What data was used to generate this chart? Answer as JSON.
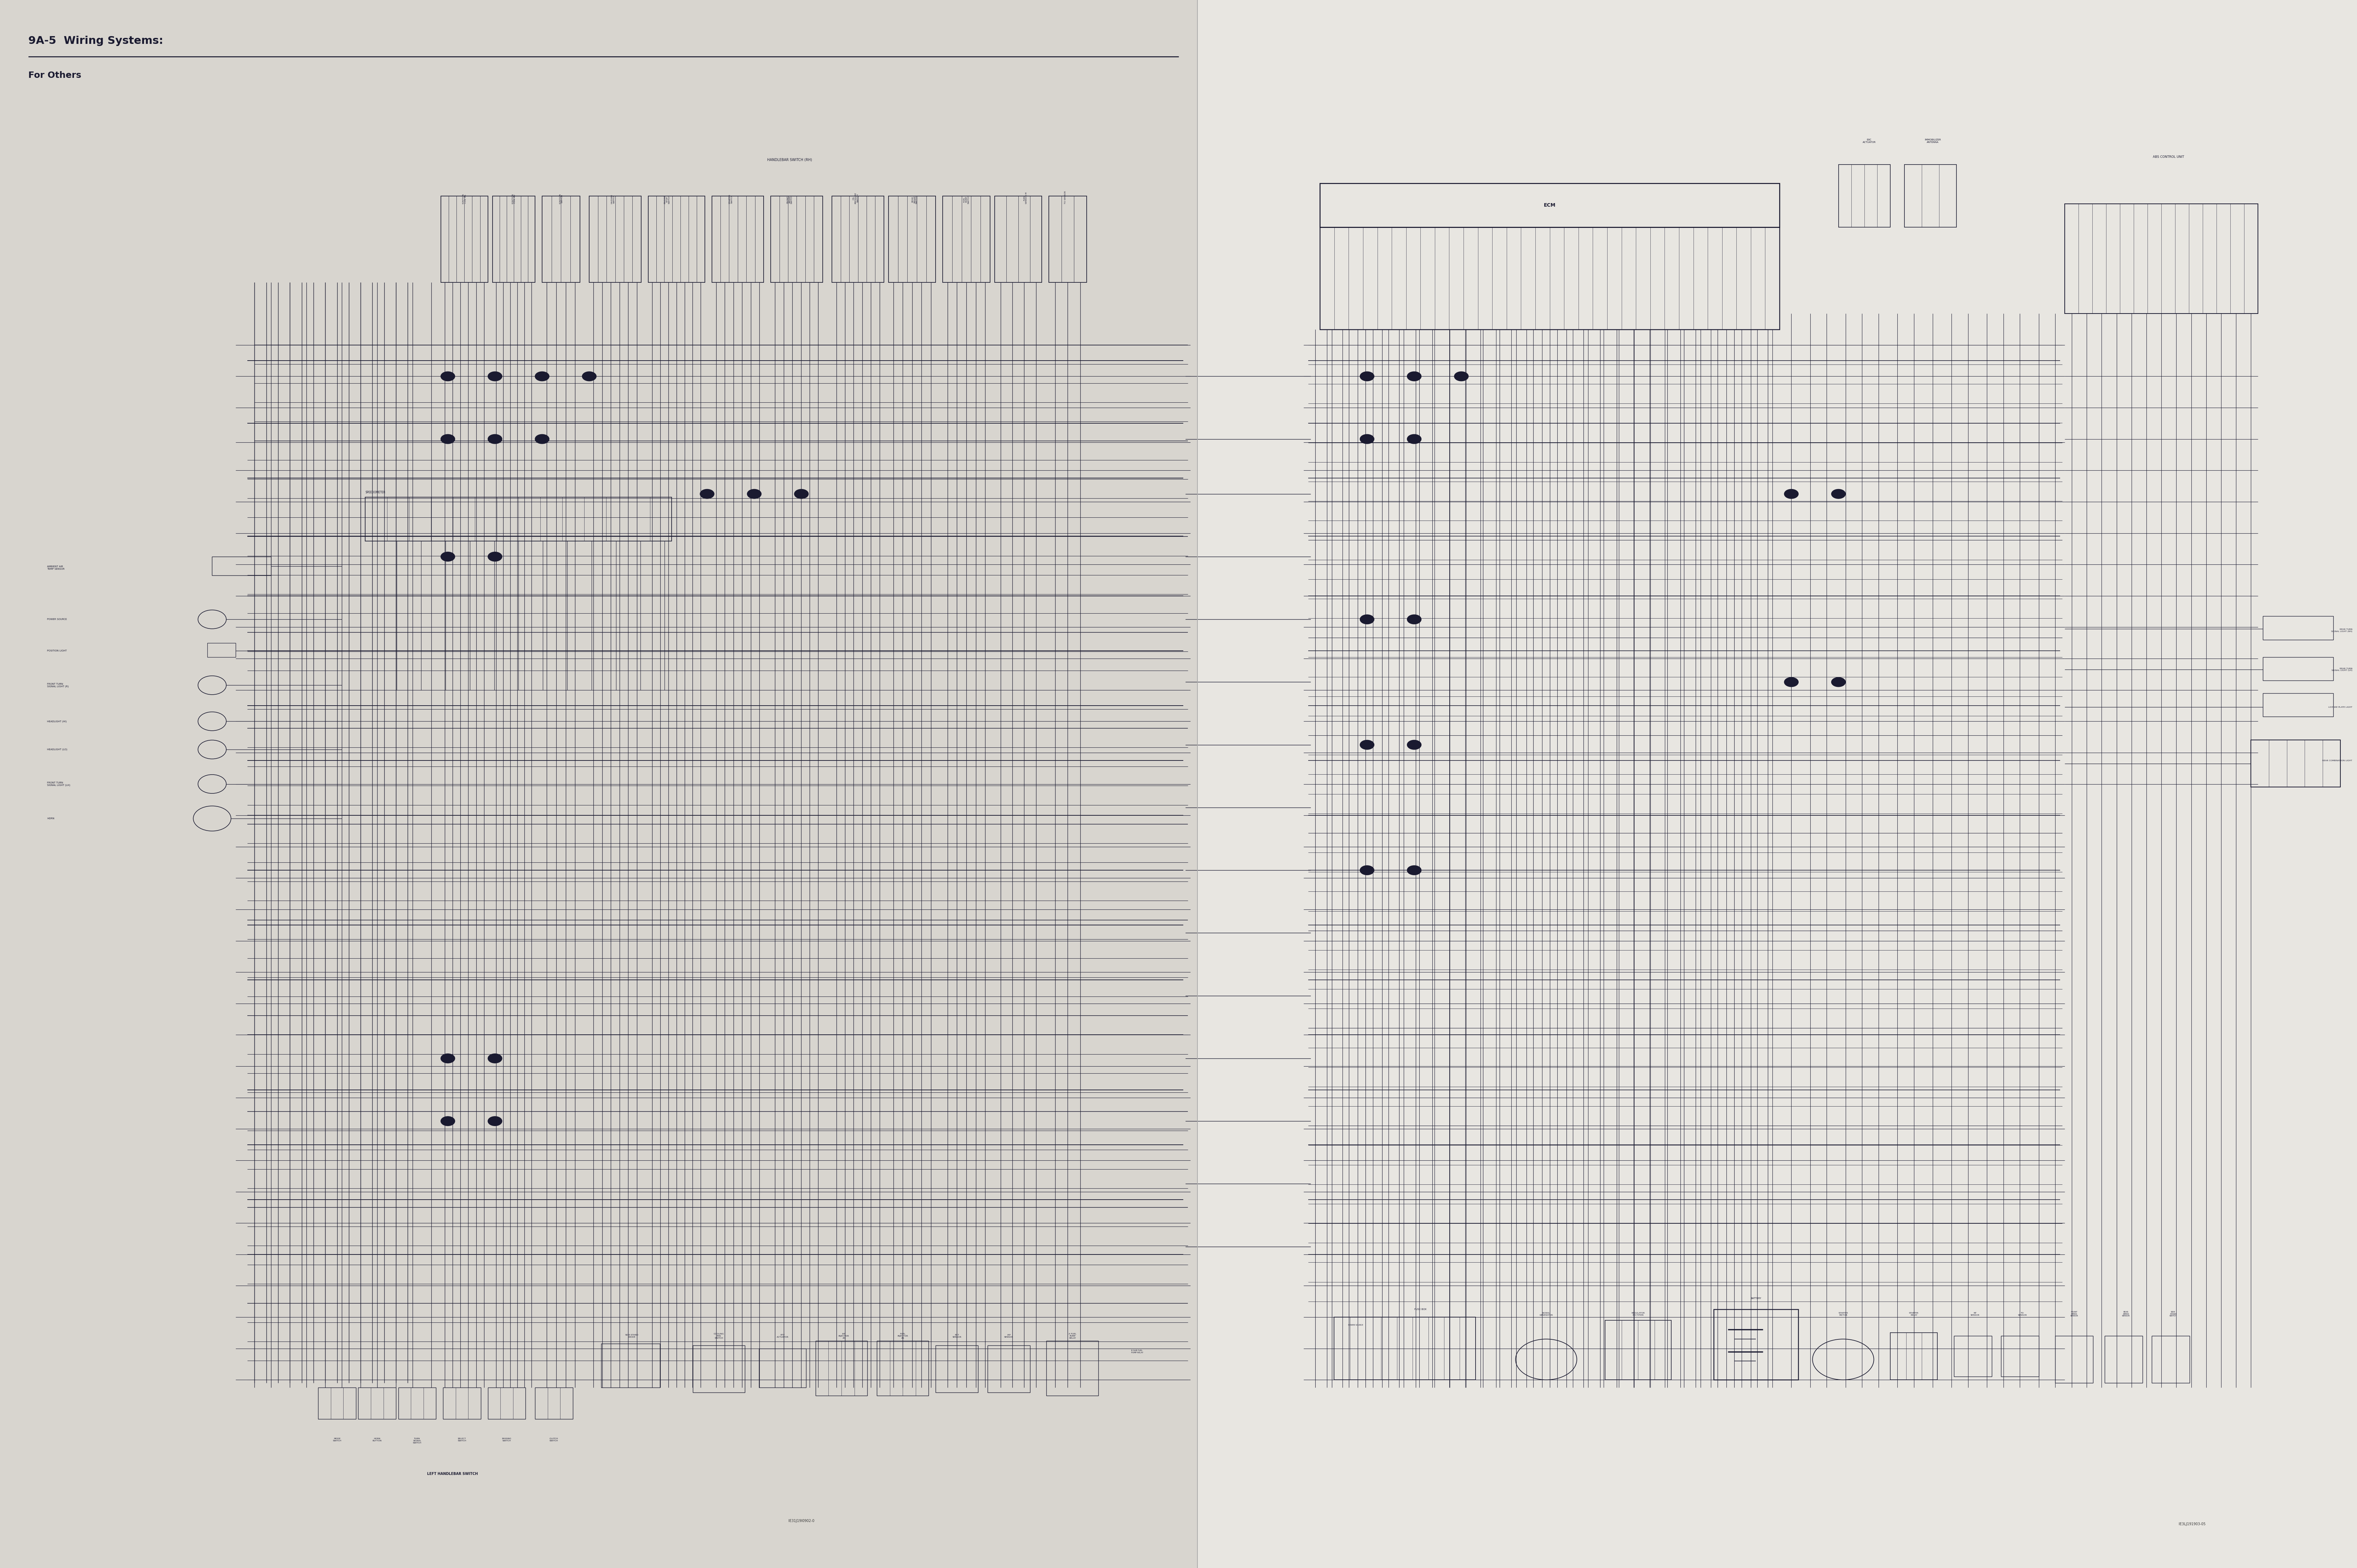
{
  "title": "9A-5  Wiring Systems:",
  "subtitle": "For Others",
  "left_bg": "#d8d5cf",
  "right_bg": "#e8e6e1",
  "line_color": "#1a1a30",
  "blue_line": "#2a2a60",
  "fig_width": 66.61,
  "fig_height": 44.31,
  "dpi": 100,
  "page_split": 0.508,
  "footer_left": "IE31J19I0902-0",
  "footer_right": "IE3LJ191903-05"
}
